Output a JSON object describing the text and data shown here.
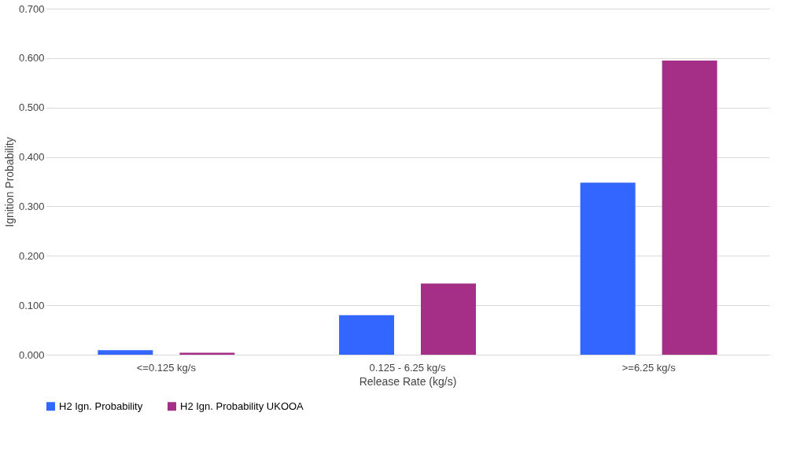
{
  "chart_data": {
    "type": "bar",
    "xlabel": "Release Rate (kg/s)",
    "ylabel": "Ignition Probability",
    "categories": [
      "<=0.125 kg/s",
      "0.125 - 6.25 kg/s",
      ">=6.25 kg/s"
    ],
    "series": [
      {
        "name": "H2 Ign. Probability",
        "color": "#3366ff",
        "values": [
          0.009,
          0.08,
          0.348
        ]
      },
      {
        "name": "H2 Ign. Probability UKOOA",
        "color": "#a52f86",
        "values": [
          0.004,
          0.144,
          0.595
        ]
      }
    ],
    "ylim": [
      0,
      0.7
    ],
    "yticks": [
      {
        "value": 0,
        "label": "0.000"
      },
      {
        "value": 0.1,
        "label": "0.100"
      },
      {
        "value": 0.2,
        "label": "0.200"
      },
      {
        "value": 0.3,
        "label": "0.300"
      },
      {
        "value": 0.4,
        "label": "0.400"
      },
      {
        "value": 0.5,
        "label": "0.500"
      },
      {
        "value": 0.6,
        "label": "0.600"
      },
      {
        "value": 0.7,
        "label": "0.700"
      }
    ],
    "grid": "y",
    "legend": "bottom"
  }
}
